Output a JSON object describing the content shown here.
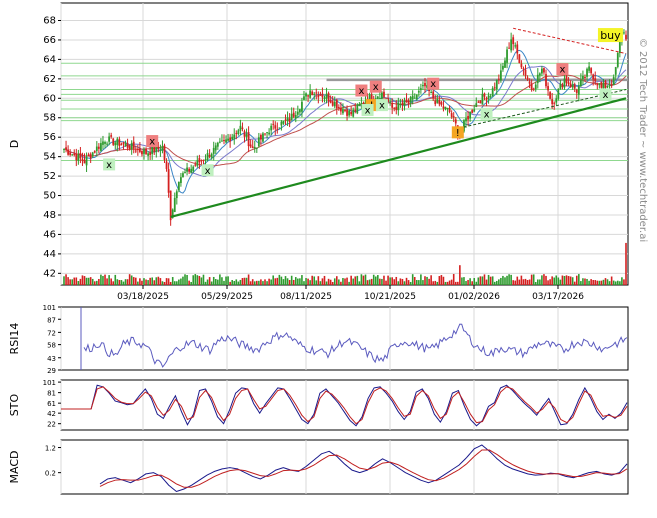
{
  "chart_data": [
    {
      "type": "candlestick",
      "ylabel": "D",
      "watermark": "© 2012 Tech Trader ~ www.techtrader.ai",
      "y_ticks": [
        42,
        44,
        46,
        48,
        50,
        52,
        54,
        56,
        58,
        60,
        62,
        64,
        66,
        68
      ],
      "ylim": [
        40.8,
        69.8
      ],
      "x_ticks": [
        "03/18/2025",
        "05/29/2025",
        "08/11/2025",
        "10/21/2025",
        "01/02/2026",
        "03/17/2026"
      ],
      "price_anchors": [
        [
          0,
          54.8
        ],
        [
          10,
          53.5
        ],
        [
          20,
          55.8
        ],
        [
          30,
          55.2
        ],
        [
          40,
          54.4
        ],
        [
          48,
          55.0
        ],
        [
          50,
          52.5
        ],
        [
          52,
          47.8
        ],
        [
          56,
          51.8
        ],
        [
          62,
          52.8
        ],
        [
          68,
          53.8
        ],
        [
          75,
          55.0
        ],
        [
          80,
          55.8
        ],
        [
          86,
          57.0
        ],
        [
          92,
          54.8
        ],
        [
          100,
          56.8
        ],
        [
          110,
          57.8
        ],
        [
          120,
          60.8
        ],
        [
          128,
          60.2
        ],
        [
          135,
          59.0
        ],
        [
          140,
          58.4
        ],
        [
          148,
          60.0
        ],
        [
          155,
          60.5
        ],
        [
          160,
          59.0
        ],
        [
          168,
          59.5
        ],
        [
          176,
          61.2
        ],
        [
          182,
          59.5
        ],
        [
          188,
          58.6
        ],
        [
          193,
          56.3
        ],
        [
          196,
          57.8
        ],
        [
          202,
          59.8
        ],
        [
          208,
          60.5
        ],
        [
          213,
          62.5
        ],
        [
          218,
          66.2
        ],
        [
          222,
          64.0
        ],
        [
          228,
          61.0
        ],
        [
          233,
          63.0
        ],
        [
          238,
          59.5
        ],
        [
          244,
          62.0
        ],
        [
          250,
          60.8
        ],
        [
          256,
          63.0
        ],
        [
          262,
          61.0
        ],
        [
          268,
          61.8
        ],
        [
          272,
          67.0
        ],
        [
          274,
          66.4
        ]
      ],
      "support_lines": [
        53.6,
        57.7,
        58.0,
        58.9,
        59.8,
        60.4,
        60.9,
        62.3,
        63.6
      ],
      "resistance_zone": 61.9,
      "trendline": {
        "from": [
          47.8,
          52
        ],
        "to": [
          60.0,
          274
        ]
      },
      "downtrend_dashed": {
        "from": [
          67.2,
          219
        ],
        "to": [
          64.6,
          274
        ]
      },
      "signals": [
        {
          "label": "x",
          "kind": "buy",
          "i": 22,
          "y": 53.2
        },
        {
          "label": "x",
          "kind": "sell",
          "i": 43,
          "y": 55.6
        },
        {
          "label": "x",
          "kind": "buy",
          "i": 70,
          "y": 52.6
        },
        {
          "label": "x",
          "kind": "sell",
          "i": 145,
          "y": 60.8
        },
        {
          "label": "x",
          "kind": "sell",
          "i": 152,
          "y": 61.2
        },
        {
          "label": "!",
          "kind": "warn",
          "i": 150,
          "y": 59.3
        },
        {
          "label": "x",
          "kind": "buy",
          "i": 148,
          "y": 58.8
        },
        {
          "label": "x",
          "kind": "buy",
          "i": 155,
          "y": 59.3
        },
        {
          "label": "x",
          "kind": "sell",
          "i": 180,
          "y": 61.5
        },
        {
          "label": "!",
          "kind": "warn",
          "i": 192,
          "y": 56.5
        },
        {
          "label": "x",
          "kind": "buy",
          "i": 206,
          "y": 58.4
        },
        {
          "label": "x",
          "kind": "sell",
          "i": 243,
          "y": 63.0
        },
        {
          "label": "x",
          "kind": "buy",
          "i": 264,
          "y": 60.4
        }
      ],
      "buy_label": "buy",
      "buy_at": [
        273,
        66.4
      ]
    },
    {
      "type": "line",
      "ylabel": "RSI14",
      "y_ticks": [
        29,
        43,
        58,
        72,
        87,
        101
      ],
      "ylim": [
        29,
        101
      ],
      "series": [
        {
          "values": [
            52,
            55,
            60,
            50,
            45,
            58,
            62,
            60,
            55,
            40,
            32,
            45,
            55,
            58,
            60,
            55,
            52,
            62,
            66,
            63,
            58,
            55,
            52,
            60,
            65,
            70,
            68,
            60,
            55,
            52,
            50,
            48,
            55,
            62,
            60,
            55,
            48,
            42,
            40,
            52,
            60,
            62,
            58,
            55,
            52,
            58,
            65,
            72,
            78,
            65,
            55,
            50,
            48,
            55,
            52,
            50,
            48,
            55,
            60,
            58,
            55,
            52,
            58,
            62,
            60,
            58,
            52,
            58,
            60,
            66
          ]
        }
      ]
    },
    {
      "type": "line",
      "ylabel": "STO",
      "y_ticks": [
        22,
        42,
        61,
        81,
        101
      ],
      "ylim": [
        10,
        105
      ],
      "series": [
        {
          "values": [
            50,
            50,
            50,
            50,
            50,
            50,
            95,
            92,
            80,
            65,
            62,
            58,
            60,
            75,
            88,
            70,
            40,
            32,
            55,
            75,
            45,
            20,
            40,
            85,
            88,
            65,
            35,
            22,
            48,
            80,
            90,
            88,
            60,
            42,
            60,
            75,
            90,
            88,
            70,
            50,
            30,
            22,
            40,
            80,
            88,
            75,
            62,
            45,
            28,
            18,
            35,
            70,
            90,
            92,
            80,
            65,
            45,
            30,
            45,
            82,
            88,
            70,
            40,
            25,
            45,
            80,
            85,
            55,
            30,
            18,
            28,
            55,
            62,
            90,
            95,
            85,
            72,
            60,
            50,
            38,
            55,
            70,
            45,
            20,
            22,
            40,
            68,
            90,
            70,
            45,
            30,
            40,
            32,
            42,
            62
          ]
        },
        {
          "values": [
            50,
            50,
            50,
            50,
            50,
            50,
            88,
            92,
            82,
            70,
            63,
            60,
            60,
            70,
            82,
            75,
            52,
            38,
            48,
            68,
            55,
            30,
            35,
            72,
            85,
            72,
            45,
            28,
            40,
            70,
            85,
            88,
            68,
            50,
            55,
            70,
            85,
            88,
            76,
            58,
            38,
            26,
            35,
            70,
            84,
            78,
            66,
            52,
            35,
            22,
            30,
            62,
            84,
            90,
            84,
            70,
            52,
            36,
            40,
            74,
            85,
            75,
            50,
            32,
            40,
            72,
            82,
            62,
            40,
            24,
            26,
            48,
            58,
            82,
            92,
            88,
            76,
            64,
            54,
            42,
            50,
            64,
            52,
            30,
            24,
            34,
            60,
            84,
            76,
            52,
            36,
            38,
            34,
            38,
            55
          ]
        }
      ]
    },
    {
      "type": "line",
      "ylabel": "MACD",
      "y_ticks": [
        0.2,
        1.2
      ],
      "ylim": [
        -0.65,
        1.5
      ],
      "series": [
        {
          "values": [
            -0.25,
            -0.05,
            0.0,
            -0.1,
            -0.2,
            -0.05,
            0.15,
            0.2,
            0.05,
            -0.3,
            -0.55,
            -0.45,
            -0.3,
            -0.1,
            0.1,
            0.25,
            0.35,
            0.4,
            0.35,
            0.2,
            0.05,
            -0.05,
            0.1,
            0.3,
            0.4,
            0.3,
            0.25,
            0.45,
            0.7,
            0.95,
            1.05,
            0.85,
            0.55,
            0.3,
            0.2,
            0.3,
            0.55,
            0.75,
            0.6,
            0.4,
            0.2,
            0.05,
            -0.1,
            -0.2,
            -0.1,
            0.1,
            0.3,
            0.5,
            0.8,
            1.15,
            1.3,
            1.05,
            0.75,
            0.5,
            0.35,
            0.25,
            0.15,
            0.1,
            0.12,
            0.18,
            0.15,
            0.05,
            0.0,
            0.1,
            0.2,
            0.25,
            0.15,
            0.1,
            0.2,
            0.55
          ]
        },
        {
          "values": [
            -0.35,
            -0.2,
            -0.1,
            -0.08,
            -0.1,
            -0.1,
            -0.02,
            0.08,
            0.1,
            -0.05,
            -0.25,
            -0.38,
            -0.38,
            -0.28,
            -0.12,
            0.05,
            0.18,
            0.28,
            0.32,
            0.28,
            0.18,
            0.08,
            0.05,
            0.15,
            0.28,
            0.3,
            0.28,
            0.35,
            0.5,
            0.7,
            0.88,
            0.9,
            0.75,
            0.55,
            0.38,
            0.32,
            0.42,
            0.58,
            0.62,
            0.52,
            0.36,
            0.2,
            0.05,
            -0.08,
            -0.12,
            -0.02,
            0.15,
            0.32,
            0.55,
            0.85,
            1.1,
            1.1,
            0.92,
            0.7,
            0.52,
            0.38,
            0.26,
            0.18,
            0.14,
            0.15,
            0.16,
            0.1,
            0.04,
            0.05,
            0.12,
            0.2,
            0.18,
            0.14,
            0.16,
            0.35
          ]
        }
      ]
    }
  ],
  "colors": {
    "up": "#2e9b2e",
    "down": "#d42020",
    "rsi": "#5b5bbf",
    "sto_k": "#1a1a8c",
    "sto_d": "#c02020",
    "macd": "#1a1a8c",
    "signal": "#c02020",
    "trend": "#1e8a1e",
    "support": "#8fd88f",
    "grid": "#d8d8d8",
    "buy_bg": "#f4f428",
    "sell_bg": "#ef7f7f",
    "buyx_bg": "#bff0bf",
    "warn_bg": "#f5a623"
  }
}
